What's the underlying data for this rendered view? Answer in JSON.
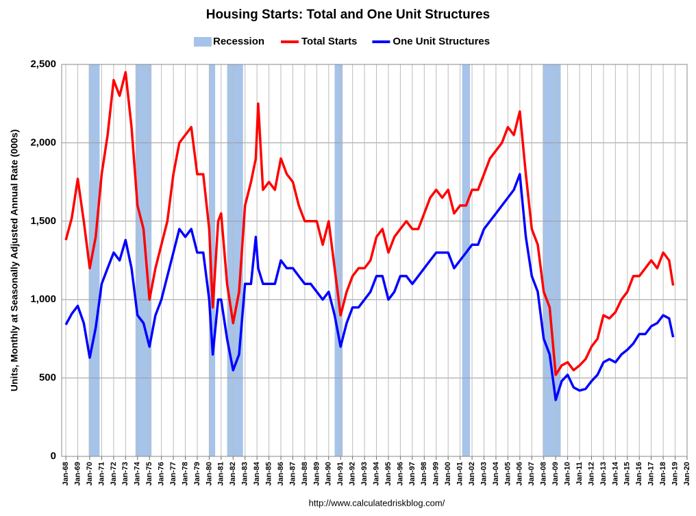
{
  "chart_data": {
    "type": "line",
    "title": "Housing Starts: Total and One Unit Structures",
    "y_label": "Units, Monthly at Seasonally Adjusted Annual Rate (000s)",
    "source": "http://www.calculatedriskblog.com/",
    "recessions": {
      "name": "Recession",
      "color": "#a6c3e9",
      "periods": [
        [
          1969.92,
          1970.83
        ],
        [
          1973.83,
          1975.17
        ],
        [
          1980.0,
          1980.5
        ],
        [
          1981.5,
          1982.83
        ],
        [
          1990.5,
          1991.17
        ],
        [
          2001.17,
          2001.83
        ],
        [
          2007.92,
          2009.42
        ]
      ]
    },
    "x": [
      1968,
      1968.5,
      1969,
      1969.5,
      1970,
      1970.5,
      1971,
      1971.5,
      1972,
      1972.5,
      1973,
      1973.5,
      1974,
      1974.5,
      1975,
      1975.5,
      1976,
      1976.5,
      1977,
      1977.5,
      1978,
      1978.5,
      1979,
      1979.5,
      1980,
      1980.3,
      1980.75,
      1981,
      1981.5,
      1982,
      1982.5,
      1983,
      1983.5,
      1983.9,
      1984.1,
      1984.5,
      1985,
      1985.5,
      1986,
      1986.5,
      1987,
      1987.5,
      1988,
      1988.5,
      1989,
      1989.5,
      1990,
      1990.5,
      1991,
      1991.5,
      1992,
      1992.5,
      1993,
      1993.5,
      1994,
      1994.5,
      1995,
      1995.5,
      1996,
      1996.5,
      1997,
      1997.5,
      1998,
      1998.5,
      1999,
      1999.5,
      2000,
      2000.5,
      2001,
      2001.5,
      2002,
      2002.5,
      2003,
      2003.5,
      2004,
      2004.5,
      2005,
      2005.5,
      2006,
      2006.5,
      2007,
      2007.5,
      2008,
      2008.5,
      2009,
      2009.5,
      2010,
      2010.5,
      2011,
      2011.5,
      2012,
      2012.5,
      2013,
      2013.5,
      2014,
      2014.5,
      2015,
      2015.5,
      2016,
      2016.5,
      2017,
      2017.5,
      2018,
      2018.5,
      2018.83
    ],
    "series": [
      {
        "name": "Total Starts",
        "color": "#ff0000",
        "values": [
          1380,
          1520,
          1770,
          1500,
          1200,
          1400,
          1800,
          2050,
          2400,
          2300,
          2450,
          2100,
          1600,
          1450,
          1000,
          1200,
          1350,
          1500,
          1800,
          2000,
          2050,
          2100,
          1800,
          1800,
          1450,
          950,
          1500,
          1550,
          1100,
          850,
          1050,
          1600,
          1750,
          1900,
          2250,
          1700,
          1750,
          1700,
          1900,
          1800,
          1750,
          1600,
          1500,
          1500,
          1500,
          1350,
          1500,
          1200,
          900,
          1050,
          1150,
          1200,
          1200,
          1250,
          1400,
          1450,
          1300,
          1400,
          1450,
          1500,
          1450,
          1450,
          1550,
          1650,
          1700,
          1650,
          1700,
          1550,
          1600,
          1600,
          1700,
          1700,
          1800,
          1900,
          1950,
          2000,
          2100,
          2050,
          2200,
          1800,
          1450,
          1350,
          1050,
          950,
          520,
          580,
          600,
          550,
          580,
          620,
          700,
          750,
          900,
          880,
          920,
          1000,
          1050,
          1150,
          1150,
          1200,
          1250,
          1200,
          1300,
          1250,
          1090
        ]
      },
      {
        "name": "One Unit Structures",
        "color": "#0000ff",
        "values": [
          840,
          910,
          960,
          850,
          630,
          820,
          1100,
          1200,
          1300,
          1250,
          1380,
          1200,
          900,
          850,
          700,
          900,
          1000,
          1150,
          1300,
          1450,
          1400,
          1450,
          1300,
          1300,
          1000,
          650,
          1000,
          1000,
          750,
          550,
          650,
          1100,
          1100,
          1400,
          1200,
          1100,
          1100,
          1100,
          1250,
          1200,
          1200,
          1150,
          1100,
          1100,
          1050,
          1000,
          1050,
          900,
          700,
          850,
          950,
          950,
          1000,
          1050,
          1150,
          1150,
          1000,
          1050,
          1150,
          1150,
          1100,
          1150,
          1200,
          1250,
          1300,
          1300,
          1300,
          1200,
          1250,
          1300,
          1350,
          1350,
          1450,
          1500,
          1550,
          1600,
          1650,
          1700,
          1800,
          1400,
          1150,
          1050,
          750,
          650,
          360,
          480,
          520,
          440,
          420,
          430,
          480,
          520,
          600,
          620,
          600,
          650,
          680,
          720,
          780,
          780,
          830,
          850,
          900,
          880,
          760
        ]
      }
    ],
    "xlim": [
      1967.65,
      2020
    ],
    "xticks": [
      {
        "value": 1968,
        "label": "Jan-68"
      },
      {
        "value": 1969,
        "label": "Jan-69"
      },
      {
        "value": 1970,
        "label": "Jan-70"
      },
      {
        "value": 1971,
        "label": "Jan-71"
      },
      {
        "value": 1972,
        "label": "Jan-72"
      },
      {
        "value": 1973,
        "label": "Jan-73"
      },
      {
        "value": 1974,
        "label": "Jan-74"
      },
      {
        "value": 1975,
        "label": "Jan-75"
      },
      {
        "value": 1976,
        "label": "Jan-76"
      },
      {
        "value": 1977,
        "label": "Jan-77"
      },
      {
        "value": 1978,
        "label": "Jan-78"
      },
      {
        "value": 1979,
        "label": "Jan-79"
      },
      {
        "value": 1980,
        "label": "Jan-80"
      },
      {
        "value": 1981,
        "label": "Jan-81"
      },
      {
        "value": 1982,
        "label": "Jan-82"
      },
      {
        "value": 1983,
        "label": "Jan-83"
      },
      {
        "value": 1984,
        "label": "Jan-84"
      },
      {
        "value": 1985,
        "label": "Jan-85"
      },
      {
        "value": 1986,
        "label": "Jan-86"
      },
      {
        "value": 1987,
        "label": "Jan-87"
      },
      {
        "value": 1988,
        "label": "Jan-88"
      },
      {
        "value": 1989,
        "label": "Jan-89"
      },
      {
        "value": 1990,
        "label": "Jan-90"
      },
      {
        "value": 1991,
        "label": "Jan-91"
      },
      {
        "value": 1992,
        "label": "Jan-92"
      },
      {
        "value": 1993,
        "label": "Jan-93"
      },
      {
        "value": 1994,
        "label": "Jan-94"
      },
      {
        "value": 1995,
        "label": "Jan-95"
      },
      {
        "value": 1996,
        "label": "Jan-96"
      },
      {
        "value": 1997,
        "label": "Jan-97"
      },
      {
        "value": 1998,
        "label": "Jan-98"
      },
      {
        "value": 1999,
        "label": "Jan-99"
      },
      {
        "value": 2000,
        "label": "Jan-00"
      },
      {
        "value": 2001,
        "label": "Jan-01"
      },
      {
        "value": 2002,
        "label": "Jan-02"
      },
      {
        "value": 2003,
        "label": "Jan-03"
      },
      {
        "value": 2004,
        "label": "Jan-04"
      },
      {
        "value": 2005,
        "label": "Jan-05"
      },
      {
        "value": 2006,
        "label": "Jan-06"
      },
      {
        "value": 2007,
        "label": "Jan-07"
      },
      {
        "value": 2008,
        "label": "Jan-08"
      },
      {
        "value": 2009,
        "label": "Jan-09"
      },
      {
        "value": 2010,
        "label": "Jan-10"
      },
      {
        "value": 2011,
        "label": "Jan-11"
      },
      {
        "value": 2012,
        "label": "Jan-12"
      },
      {
        "value": 2013,
        "label": "Jan-13"
      },
      {
        "value": 2014,
        "label": "Jan-14"
      },
      {
        "value": 2015,
        "label": "Jan-15"
      },
      {
        "value": 2016,
        "label": "Jan-16"
      },
      {
        "value": 2017,
        "label": "Jan-17"
      },
      {
        "value": 2018,
        "label": "Jan-18"
      },
      {
        "value": 2019,
        "label": "Jan-19"
      },
      {
        "value": 2020,
        "label": "Jan-20"
      }
    ],
    "ylim": [
      0,
      2500
    ],
    "yticks": [
      0,
      500,
      {
        "value": 1000,
        "label": "1,000"
      },
      {
        "value": 1500,
        "label": "1,500"
      },
      {
        "value": 2000,
        "label": "2,000"
      },
      {
        "value": 2500,
        "label": "2,500"
      }
    ],
    "grid": true
  }
}
